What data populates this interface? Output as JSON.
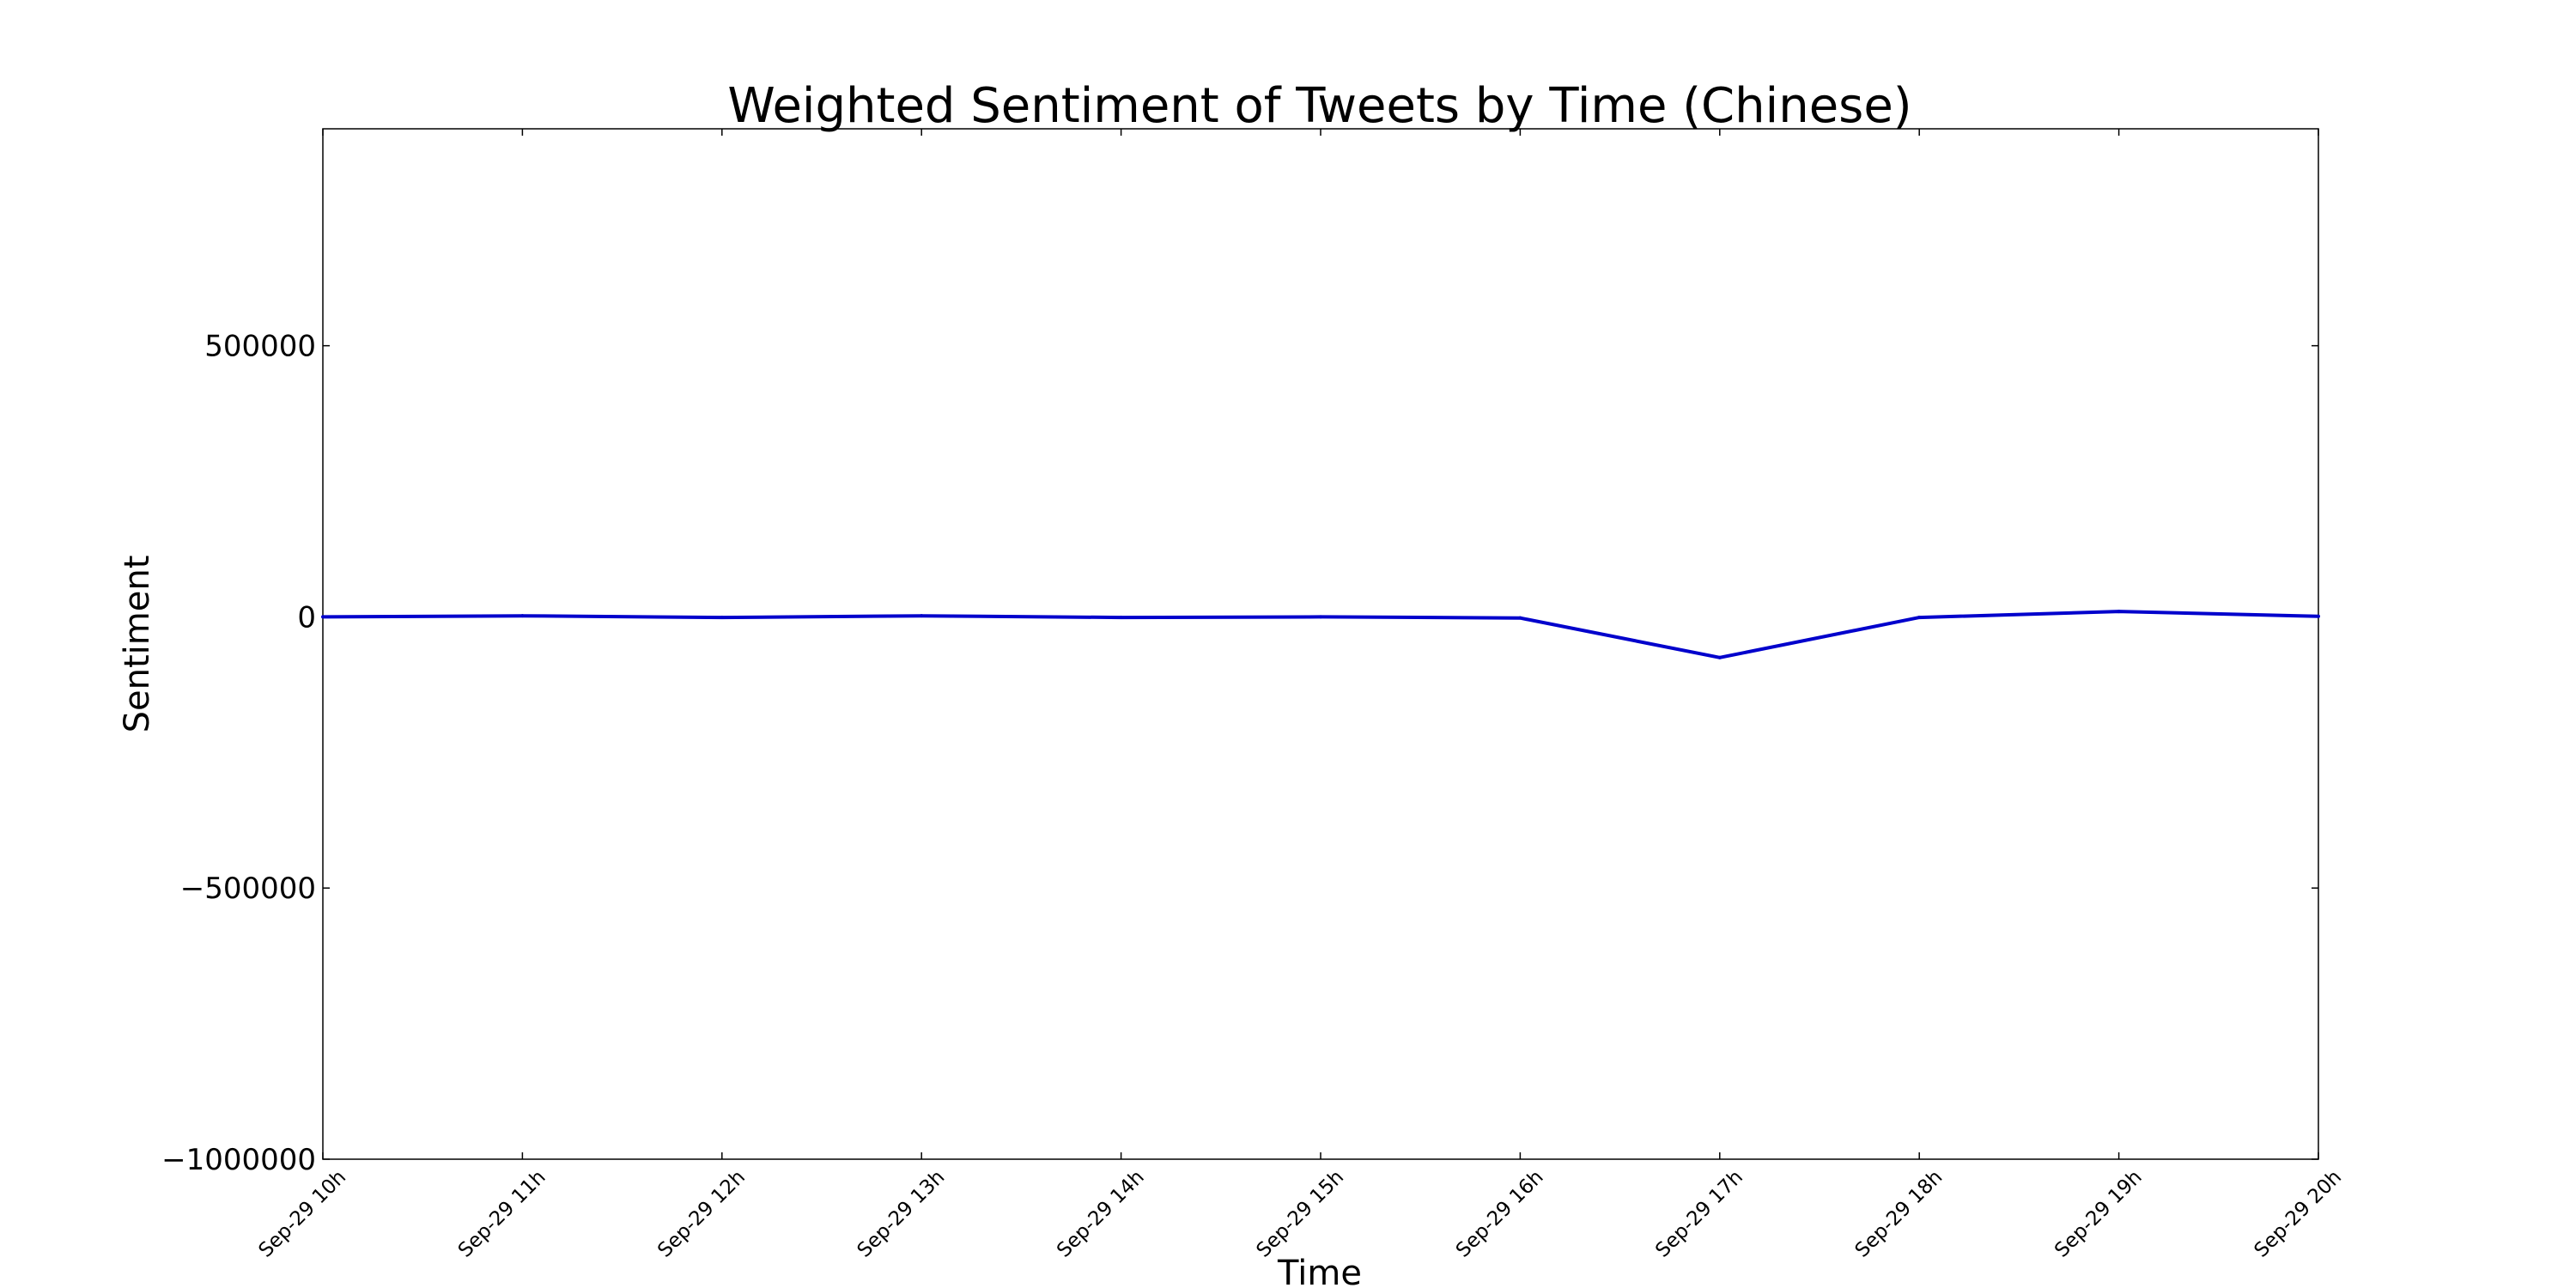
{
  "chart_data": {
    "type": "line",
    "title": "Weighted Sentiment of Tweets by Time (Chinese)",
    "xlabel": "Time",
    "ylabel": "Sentiment",
    "categories": [
      "Sep-29 10h",
      "Sep-29 11h",
      "Sep-29 12h",
      "Sep-29 13h",
      "Sep-29 14h",
      "Sep-29 15h",
      "Sep-29 16h",
      "Sep-29 17h",
      "Sep-29 18h",
      "Sep-29 19h",
      "Sep-29 20h"
    ],
    "series": [
      {
        "color": "#0000cc",
        "values": [
          0,
          2000,
          -1000,
          2000,
          -1000,
          0,
          -2000,
          -75000,
          -1000,
          10000,
          1000
        ]
      }
    ],
    "ylim": [
      -1000000,
      900000
    ],
    "yticks": [
      {
        "value": 500000,
        "label": "500000"
      },
      {
        "value": 0,
        "label": "0"
      },
      {
        "value": -500000,
        "label": "−500000"
      },
      {
        "value": -1000000,
        "label": "−1000000"
      }
    ],
    "grid": false
  }
}
